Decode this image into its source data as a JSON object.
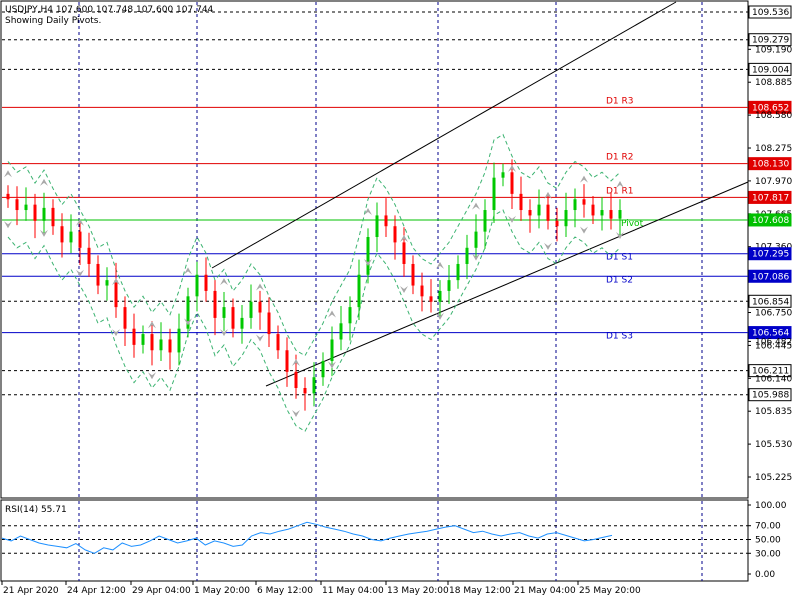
{
  "header": {
    "symbol_line": "USDJPY,H4  107.600 107.748 107.600 107.744",
    "subtitle": "Showing Daily Pivots."
  },
  "indicator": {
    "label": "RSI(14) 55.71"
  },
  "colors": {
    "grid": "#00008b",
    "pivot": "#00c000",
    "resistance": "#e00000",
    "support": "#0000c8",
    "bull": "#00c800",
    "bear": "#ff0000",
    "rsi_line": "#1e90ff",
    "bands": "#3cb371"
  },
  "chart_data": [
    {
      "type": "line",
      "price_ticks": [
        "109.536",
        "109.279",
        "109.190",
        "109.004",
        "108.885",
        "108.652",
        "108.580",
        "108.275",
        "108.130",
        "107.970",
        "107.817",
        "107.665",
        "107.608",
        "107.360",
        "107.295",
        "107.086",
        "106.854",
        "106.750",
        "106.564",
        "106.482",
        "106.445",
        "106.211",
        "106.140",
        "105.988",
        "105.835",
        "105.530",
        "105.225"
      ],
      "time_labels": [
        "21 Apr 2020",
        "24 Apr 12:00",
        "29 Apr 04:00",
        "1 May 20:00",
        "6 May 12:00",
        "11 May 04:00",
        "13 May 20:00",
        "18 May 12:00",
        "21 May 04:00",
        "25 May 20:00"
      ],
      "price_range": [
        105.0,
        109.66
      ],
      "pivots": [
        {
          "name": "D1 R3",
          "value": 108.652,
          "kind": "resistance"
        },
        {
          "name": "D1 R2",
          "value": 108.13,
          "kind": "resistance"
        },
        {
          "name": "D1 R1",
          "value": 107.817,
          "kind": "resistance"
        },
        {
          "name": "Pivot",
          "value": 107.608,
          "kind": "pivot"
        },
        {
          "name": "D1 S1",
          "value": 107.295,
          "kind": "support"
        },
        {
          "name": "D1 S2",
          "value": 107.086,
          "kind": "support"
        },
        {
          "name": "D1 S3",
          "value": 106.564,
          "kind": "support"
        }
      ],
      "horizontal_levels": [
        109.536,
        109.279,
        109.004,
        106.854,
        106.211,
        105.988
      ],
      "close_series": [
        107.8,
        107.7,
        107.75,
        107.6,
        107.72,
        107.55,
        107.4,
        107.5,
        107.35,
        107.2,
        107.0,
        107.05,
        106.8,
        106.6,
        106.45,
        106.55,
        106.4,
        106.5,
        106.38,
        106.6,
        106.9,
        107.1,
        106.95,
        106.7,
        106.8,
        106.6,
        106.7,
        106.85,
        106.75,
        106.55,
        106.4,
        106.2,
        106.05,
        106.0,
        106.15,
        106.3,
        106.5,
        106.65,
        106.8,
        107.1,
        107.45,
        107.65,
        107.55,
        107.4,
        107.2,
        107.0,
        106.9,
        106.85,
        106.95,
        107.05,
        107.2,
        107.35,
        107.5,
        107.7,
        108.0,
        108.05,
        107.85,
        107.7,
        107.65,
        107.75,
        107.6,
        107.55,
        107.7,
        107.8,
        107.75,
        107.65,
        107.7,
        107.62,
        107.7
      ]
    },
    {
      "type": "line",
      "name": "RSI(14)",
      "last_value": 55.71,
      "levels": [
        100.0,
        70.0,
        50.0,
        30.0,
        0.0
      ],
      "tick_labels": [
        "100.00",
        "70.00",
        "50.00",
        "30.00",
        "0.00"
      ],
      "values": [
        52,
        48,
        55,
        50,
        45,
        42,
        40,
        38,
        44,
        35,
        30,
        38,
        35,
        45,
        40,
        42,
        48,
        55,
        50,
        45,
        48,
        52,
        42,
        48,
        45,
        40,
        42,
        55,
        60,
        58,
        62,
        65,
        70,
        75,
        72,
        68,
        65,
        62,
        58,
        55,
        50,
        48,
        52,
        55,
        58,
        60,
        62,
        65,
        68,
        70,
        65,
        60,
        62,
        58,
        55,
        58,
        60,
        55,
        52,
        58,
        60,
        56,
        52,
        48,
        50,
        53,
        56
      ]
    }
  ]
}
